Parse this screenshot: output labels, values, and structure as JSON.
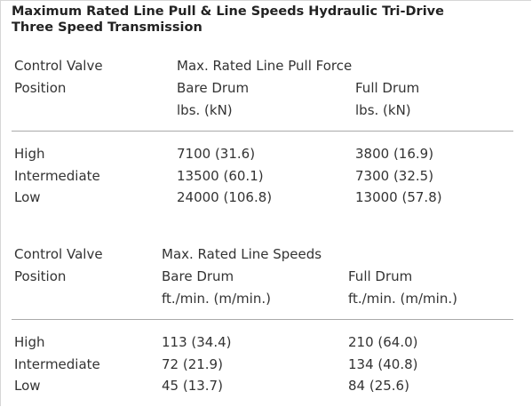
{
  "title_lines": [
    "Maximum Rated Line Pull & Line Speeds Hydraulic Tri-Drive",
    "Three Speed Transmission"
  ],
  "tables": [
    {
      "header": {
        "first_column": [
          "Control Valve",
          "Position"
        ],
        "group": "Max. Rated Line Pull Force",
        "columns": [
          {
            "name": "Bare Drum",
            "unit": "lbs. (kN)"
          },
          {
            "name": "Full Drum",
            "unit": "lbs. (kN)"
          }
        ]
      },
      "rows": [
        [
          "High",
          "7100 (31.6)",
          "3800 (16.9)"
        ],
        [
          "Intermediate",
          "13500 (60.1)",
          "7300 (32.5)"
        ],
        [
          "Low",
          "24000 (106.8)",
          "13000 (57.8)"
        ]
      ]
    },
    {
      "header": {
        "first_column": [
          "Control Valve",
          "Position"
        ],
        "group": "Max. Rated Line Speeds",
        "columns": [
          {
            "name": "Bare Drum",
            "unit": "ft./min. (m/min.)"
          },
          {
            "name": "Full Drum",
            "unit": "ft./min. (m/min.)"
          }
        ]
      },
      "rows": [
        [
          "High",
          "113 (34.4)",
          "210 (64.0)"
        ],
        [
          "Intermediate",
          "72 (21.9)",
          "134 (40.8)"
        ],
        [
          "Low",
          "45 (13.7)",
          "84 (25.6)"
        ]
      ]
    }
  ]
}
